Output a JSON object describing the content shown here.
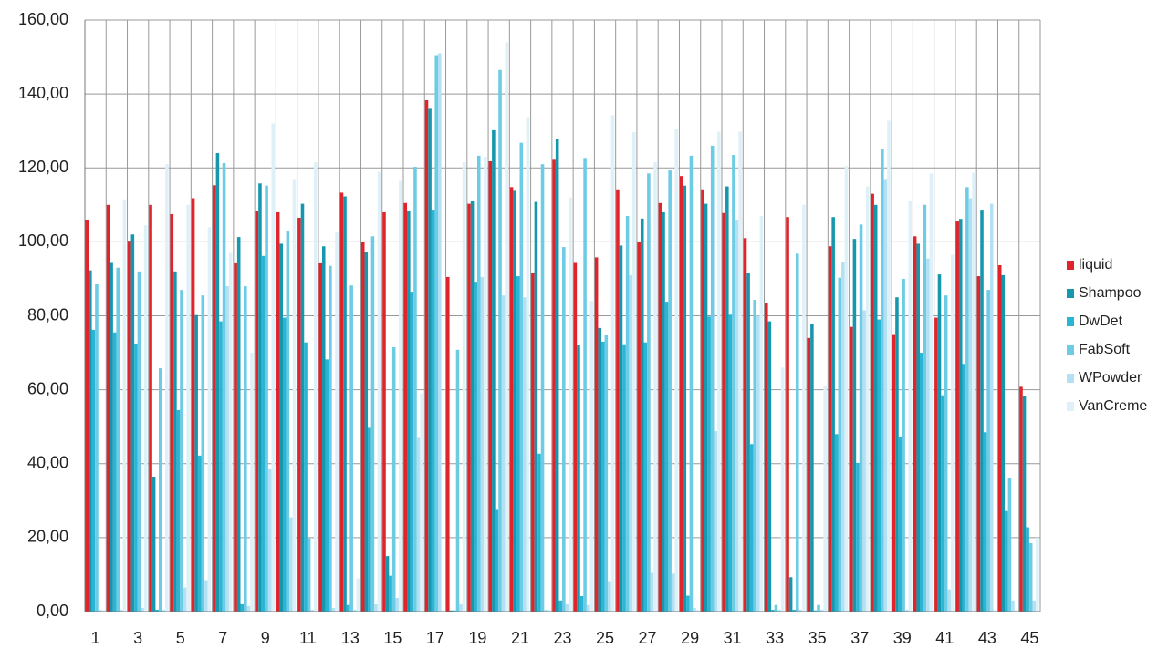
{
  "chart_data": {
    "type": "bar",
    "categories": [
      "1",
      null,
      "3",
      null,
      "5",
      null,
      "7",
      null,
      "9",
      null,
      "11",
      null,
      "13",
      null,
      "15",
      null,
      "17",
      null,
      "19",
      null,
      "21",
      null,
      "23",
      null,
      "25",
      null,
      "27",
      null,
      "29",
      null,
      "31",
      null,
      "33",
      null,
      "35",
      null,
      "37",
      null,
      "39",
      null,
      "41",
      null,
      "43",
      null,
      "45"
    ],
    "ylim": [
      0,
      160
    ],
    "yticks": [
      {
        "value": 0,
        "label": "0,00"
      },
      {
        "value": 20,
        "label": "20,00"
      },
      {
        "value": 40,
        "label": "40,00"
      },
      {
        "value": 60,
        "label": "60,00"
      },
      {
        "value": 80,
        "label": "80,00"
      },
      {
        "value": 100,
        "label": "100,00"
      },
      {
        "value": 120,
        "label": "120,00"
      },
      {
        "value": 140,
        "label": "140,00"
      },
      {
        "value": 160,
        "label": "160,00"
      }
    ],
    "grid": true,
    "legend": "right",
    "series": [
      {
        "name": "liquid",
        "color": "#e0242b",
        "values": [
          106,
          110,
          100.3,
          110,
          107.5,
          111.8,
          115.3,
          94.2,
          108.3,
          108,
          106.5,
          94.2,
          113.3,
          100,
          108,
          110.5,
          138.3,
          90.5,
          110.3,
          121.8,
          114.8,
          91.7,
          122.2,
          94.3,
          95.8,
          114.2,
          100,
          110.5,
          117.8,
          114.2,
          107.8,
          101,
          83.5,
          106.7,
          74,
          98.8,
          77,
          113,
          74.8,
          101.5,
          79.5,
          105.5,
          90.7,
          93.7,
          60.8
        ]
      },
      {
        "name": "Shampoo",
        "color": "#1797ae",
        "values": [
          92.3,
          94.3,
          102,
          36.5,
          92,
          80.2,
          124,
          101.3,
          115.8,
          99.5,
          110.3,
          98.8,
          112.3,
          97.2,
          15,
          108.5,
          136,
          0.3,
          111,
          130.2,
          113.8,
          110.8,
          127.8,
          72,
          76.7,
          99,
          106.3,
          108,
          115.2,
          110.3,
          115,
          91.7,
          78.5,
          9.3,
          77.7,
          106.7,
          100.8,
          110,
          85,
          99.5,
          91.2,
          106.2,
          108.7,
          91,
          58.3
        ]
      },
      {
        "name": "DwDet",
        "color": "#2ab5d4",
        "values": [
          76.2,
          75.5,
          72.5,
          0.5,
          54.5,
          42.2,
          78.5,
          2,
          96.2,
          79.5,
          72.8,
          68.2,
          1.8,
          49.7,
          9.7,
          86.5,
          108.7,
          0.3,
          89.2,
          27.5,
          90.7,
          42.7,
          3,
          4.2,
          73,
          72.3,
          72.8,
          83.8,
          4.3,
          79.8,
          80.3,
          45.3,
          0.5,
          0.5,
          0.3,
          48,
          40.2,
          79,
          47.2,
          70,
          58.5,
          67,
          48.5,
          27.2,
          22.8
        ]
      },
      {
        "name": "FabSoft",
        "color": "#6ccbe5",
        "values": [
          88.5,
          93,
          92,
          65.8,
          87,
          85.5,
          121.3,
          88,
          115.2,
          102.8,
          19.8,
          93.5,
          88.2,
          101.5,
          71.5,
          120.3,
          150.5,
          70.8,
          123.3,
          146.5,
          126.8,
          121,
          98.6,
          122.7,
          74.7,
          107,
          118.5,
          119.3,
          123.3,
          126,
          123.5,
          84.3,
          1.8,
          96.8,
          1.8,
          90.3,
          104.7,
          125.2,
          90,
          110,
          85.5,
          114.8,
          87,
          36.2,
          18.5
        ]
      },
      {
        "name": "WPowder",
        "color": "#b3e0f2",
        "values": [
          0.5,
          0.5,
          1,
          0.5,
          6.5,
          8.5,
          88,
          1.5,
          38.5,
          25.5,
          0.5,
          1,
          0.5,
          2,
          3.7,
          47,
          151,
          2,
          90.5,
          85.5,
          85,
          0.5,
          2,
          1.8,
          8,
          91,
          10.5,
          10.3,
          1,
          48.8,
          106,
          80,
          0.5,
          0.5,
          0.5,
          94.5,
          81.5,
          117,
          0.5,
          95.5,
          6,
          111.8,
          110.3,
          3,
          3
        ]
      },
      {
        "name": "VanCreme",
        "color": "#def1f9",
        "values": [
          0.5,
          111.5,
          104.5,
          121,
          110,
          104,
          97,
          70,
          132,
          117,
          121.5,
          102.5,
          9,
          119,
          116.5,
          59,
          0.5,
          121.5,
          123,
          154,
          133.8,
          0.5,
          112,
          84,
          134.3,
          129.7,
          121.5,
          130.5,
          0.5,
          129.8,
          129.8,
          107,
          66,
          110,
          61,
          120.5,
          115,
          132.8,
          111,
          118.5,
          96.5,
          118.7,
          0.5,
          0.5,
          20
        ]
      }
    ]
  }
}
